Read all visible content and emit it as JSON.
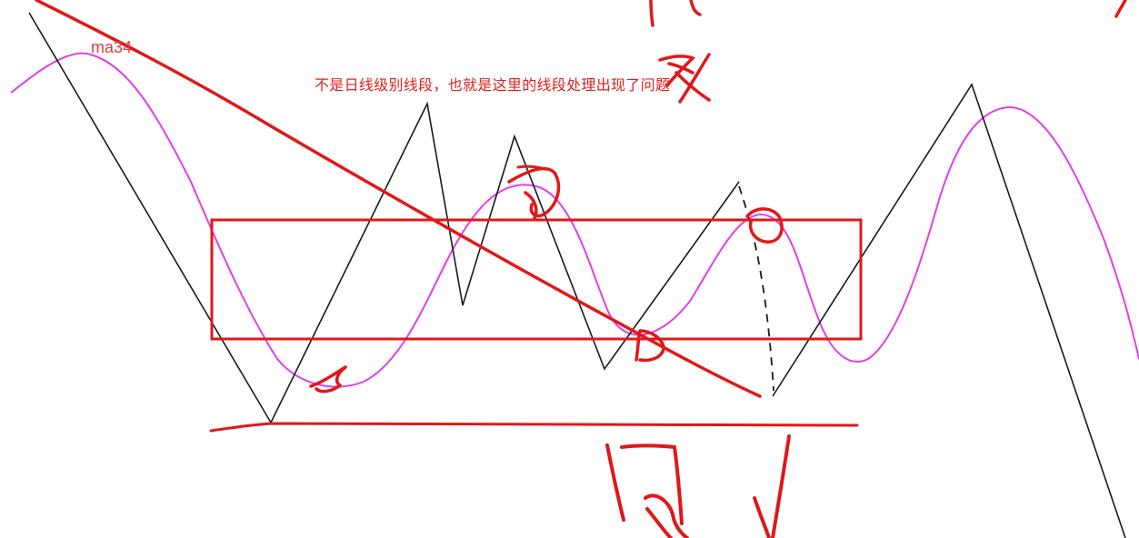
{
  "annotation": {
    "text": "不是日线级别线段，也就是这里的线段处理出现了问题",
    "ma_label": "ma34"
  },
  "colors": {
    "background": "#ffffff",
    "zigzag": "#1a1a1a",
    "ma_curve": "#e040e8",
    "handwriting": "#e01818"
  }
}
